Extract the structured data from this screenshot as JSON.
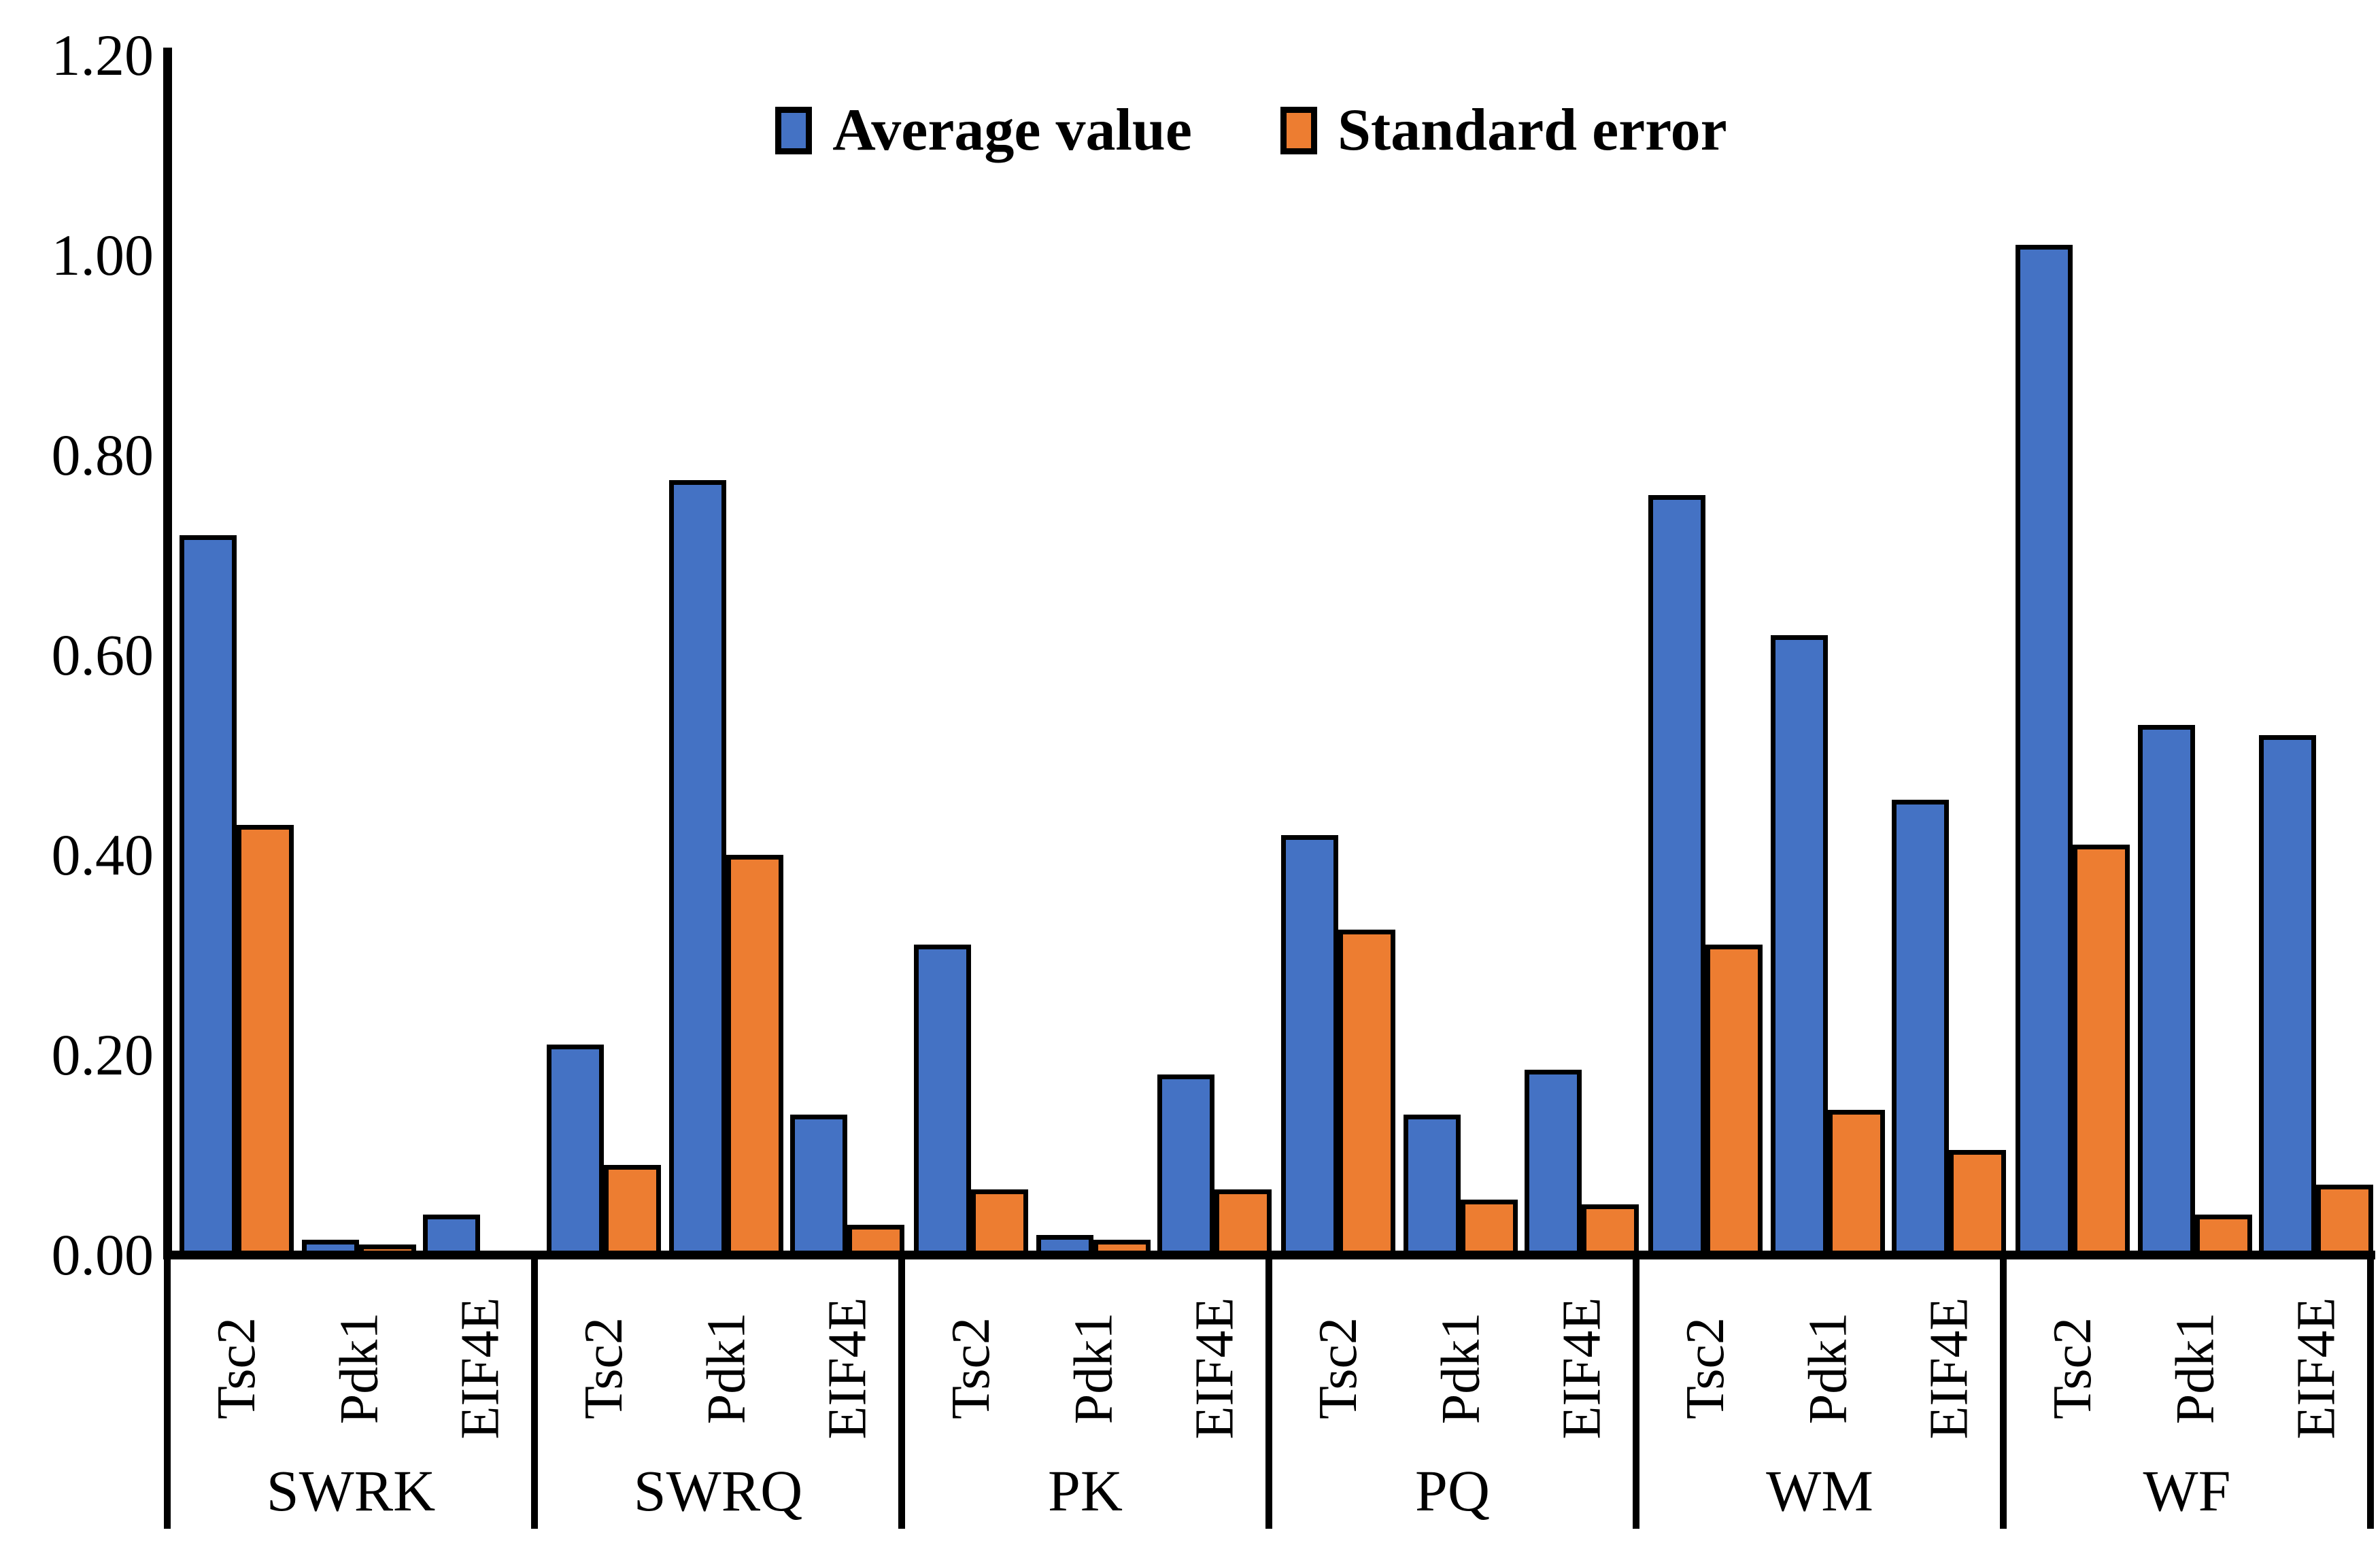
{
  "chart_data": {
    "type": "bar",
    "title": "",
    "xlabel": "",
    "ylabel": "",
    "ylim": [
      0,
      1.2
    ],
    "grid": false,
    "legend_position": "top-center",
    "yticks": [
      {
        "value": 0.0,
        "label": "0.00"
      },
      {
        "value": 0.2,
        "label": "0.20"
      },
      {
        "value": 0.4,
        "label": "0.40"
      },
      {
        "value": 0.6,
        "label": "0.60"
      },
      {
        "value": 0.8,
        "label": "0.80"
      },
      {
        "value": 1.0,
        "label": "1.00"
      },
      {
        "value": 1.2,
        "label": "1.20"
      }
    ],
    "groups": [
      "SWRK",
      "SWRQ",
      "PK",
      "PQ",
      "WM",
      "WF"
    ],
    "genes": [
      "Tsc2",
      "Pdk1",
      "EIF4E"
    ],
    "series": [
      {
        "name": "Average value",
        "color": "#4472C4",
        "values": [
          [
            0.72,
            0.015,
            0.04
          ],
          [
            0.21,
            0.775,
            0.14
          ],
          [
            0.31,
            0.02,
            0.18
          ],
          [
            0.42,
            0.14,
            0.185
          ],
          [
            0.76,
            0.62,
            0.455
          ],
          [
            1.01,
            0.53,
            0.52
          ]
        ]
      },
      {
        "name": "Standard error",
        "color": "#ED7D31",
        "values": [
          [
            0.43,
            0.01,
            0.0
          ],
          [
            0.09,
            0.4,
            0.03
          ],
          [
            0.065,
            0.015,
            0.065
          ],
          [
            0.325,
            0.055,
            0.05
          ],
          [
            0.31,
            0.145,
            0.105
          ],
          [
            0.41,
            0.04,
            0.07
          ]
        ]
      }
    ],
    "bar_outline_color": "#000000",
    "axis_color": "#000000"
  }
}
